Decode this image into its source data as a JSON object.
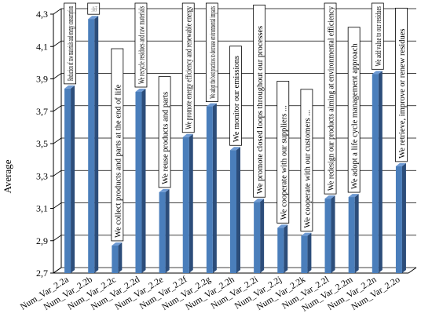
{
  "chart_data": {
    "type": "bar",
    "ylabel": "Average",
    "ylim": [
      2.7,
      4.3
    ],
    "yticks": [
      "2,7",
      "2,9",
      "3,1",
      "3,3",
      "3,5",
      "3,7",
      "3,9",
      "4,1",
      "4,3"
    ],
    "grid": true,
    "categories": [
      "Num_Var_2.2a",
      "Num_Var_2.2b",
      "Num_Var_2.2c",
      "Num_Var_2.2d",
      "Num_Var_2.2e",
      "Num_Var_2.2f",
      "Num_Var_2.2g",
      "Num_Var_2.2h",
      "Num_Var_2.2i",
      "Num_Var_2.2j",
      "Num_Var_2.2k",
      "Num_Var_2.2l",
      "Num_Var_2.2m",
      "Num_Var_2.2n",
      "Num_Var_2.2o"
    ],
    "values": [
      3.84,
      4.27,
      2.87,
      3.82,
      3.2,
      3.54,
      3.73,
      3.46,
      3.14,
      2.98,
      2.93,
      3.16,
      3.17,
      3.93,
      3.36
    ],
    "annotations": [
      "Reduction of raw materials and energy consumption",
      "Increased processes efficiency and productivity",
      "We collect products and parts at the end of life",
      "We recycle residues and raw materials",
      "We reuse products and parts",
      "We promote energy efficiency  and renewable energy",
      "We adopt the best practices to decrease environmental impacts",
      "We monitor our emissions",
      "We promote closed loops throughout our processes",
      "We cooperate with our suppliers ...",
      "We cooperate with our customers ...",
      "We redesign our products aiming  at environmental efficiency",
      "We adopt a life cycle management approach",
      "We add value to our residues",
      "We retrieve, improve or renew residues"
    ],
    "colors": {
      "bar_front": "#4a7ebb",
      "bar_side": "#2c4d7a",
      "bar_top": "#6f9bd4",
      "grid": "#000000",
      "wall": "#ffffff"
    }
  }
}
